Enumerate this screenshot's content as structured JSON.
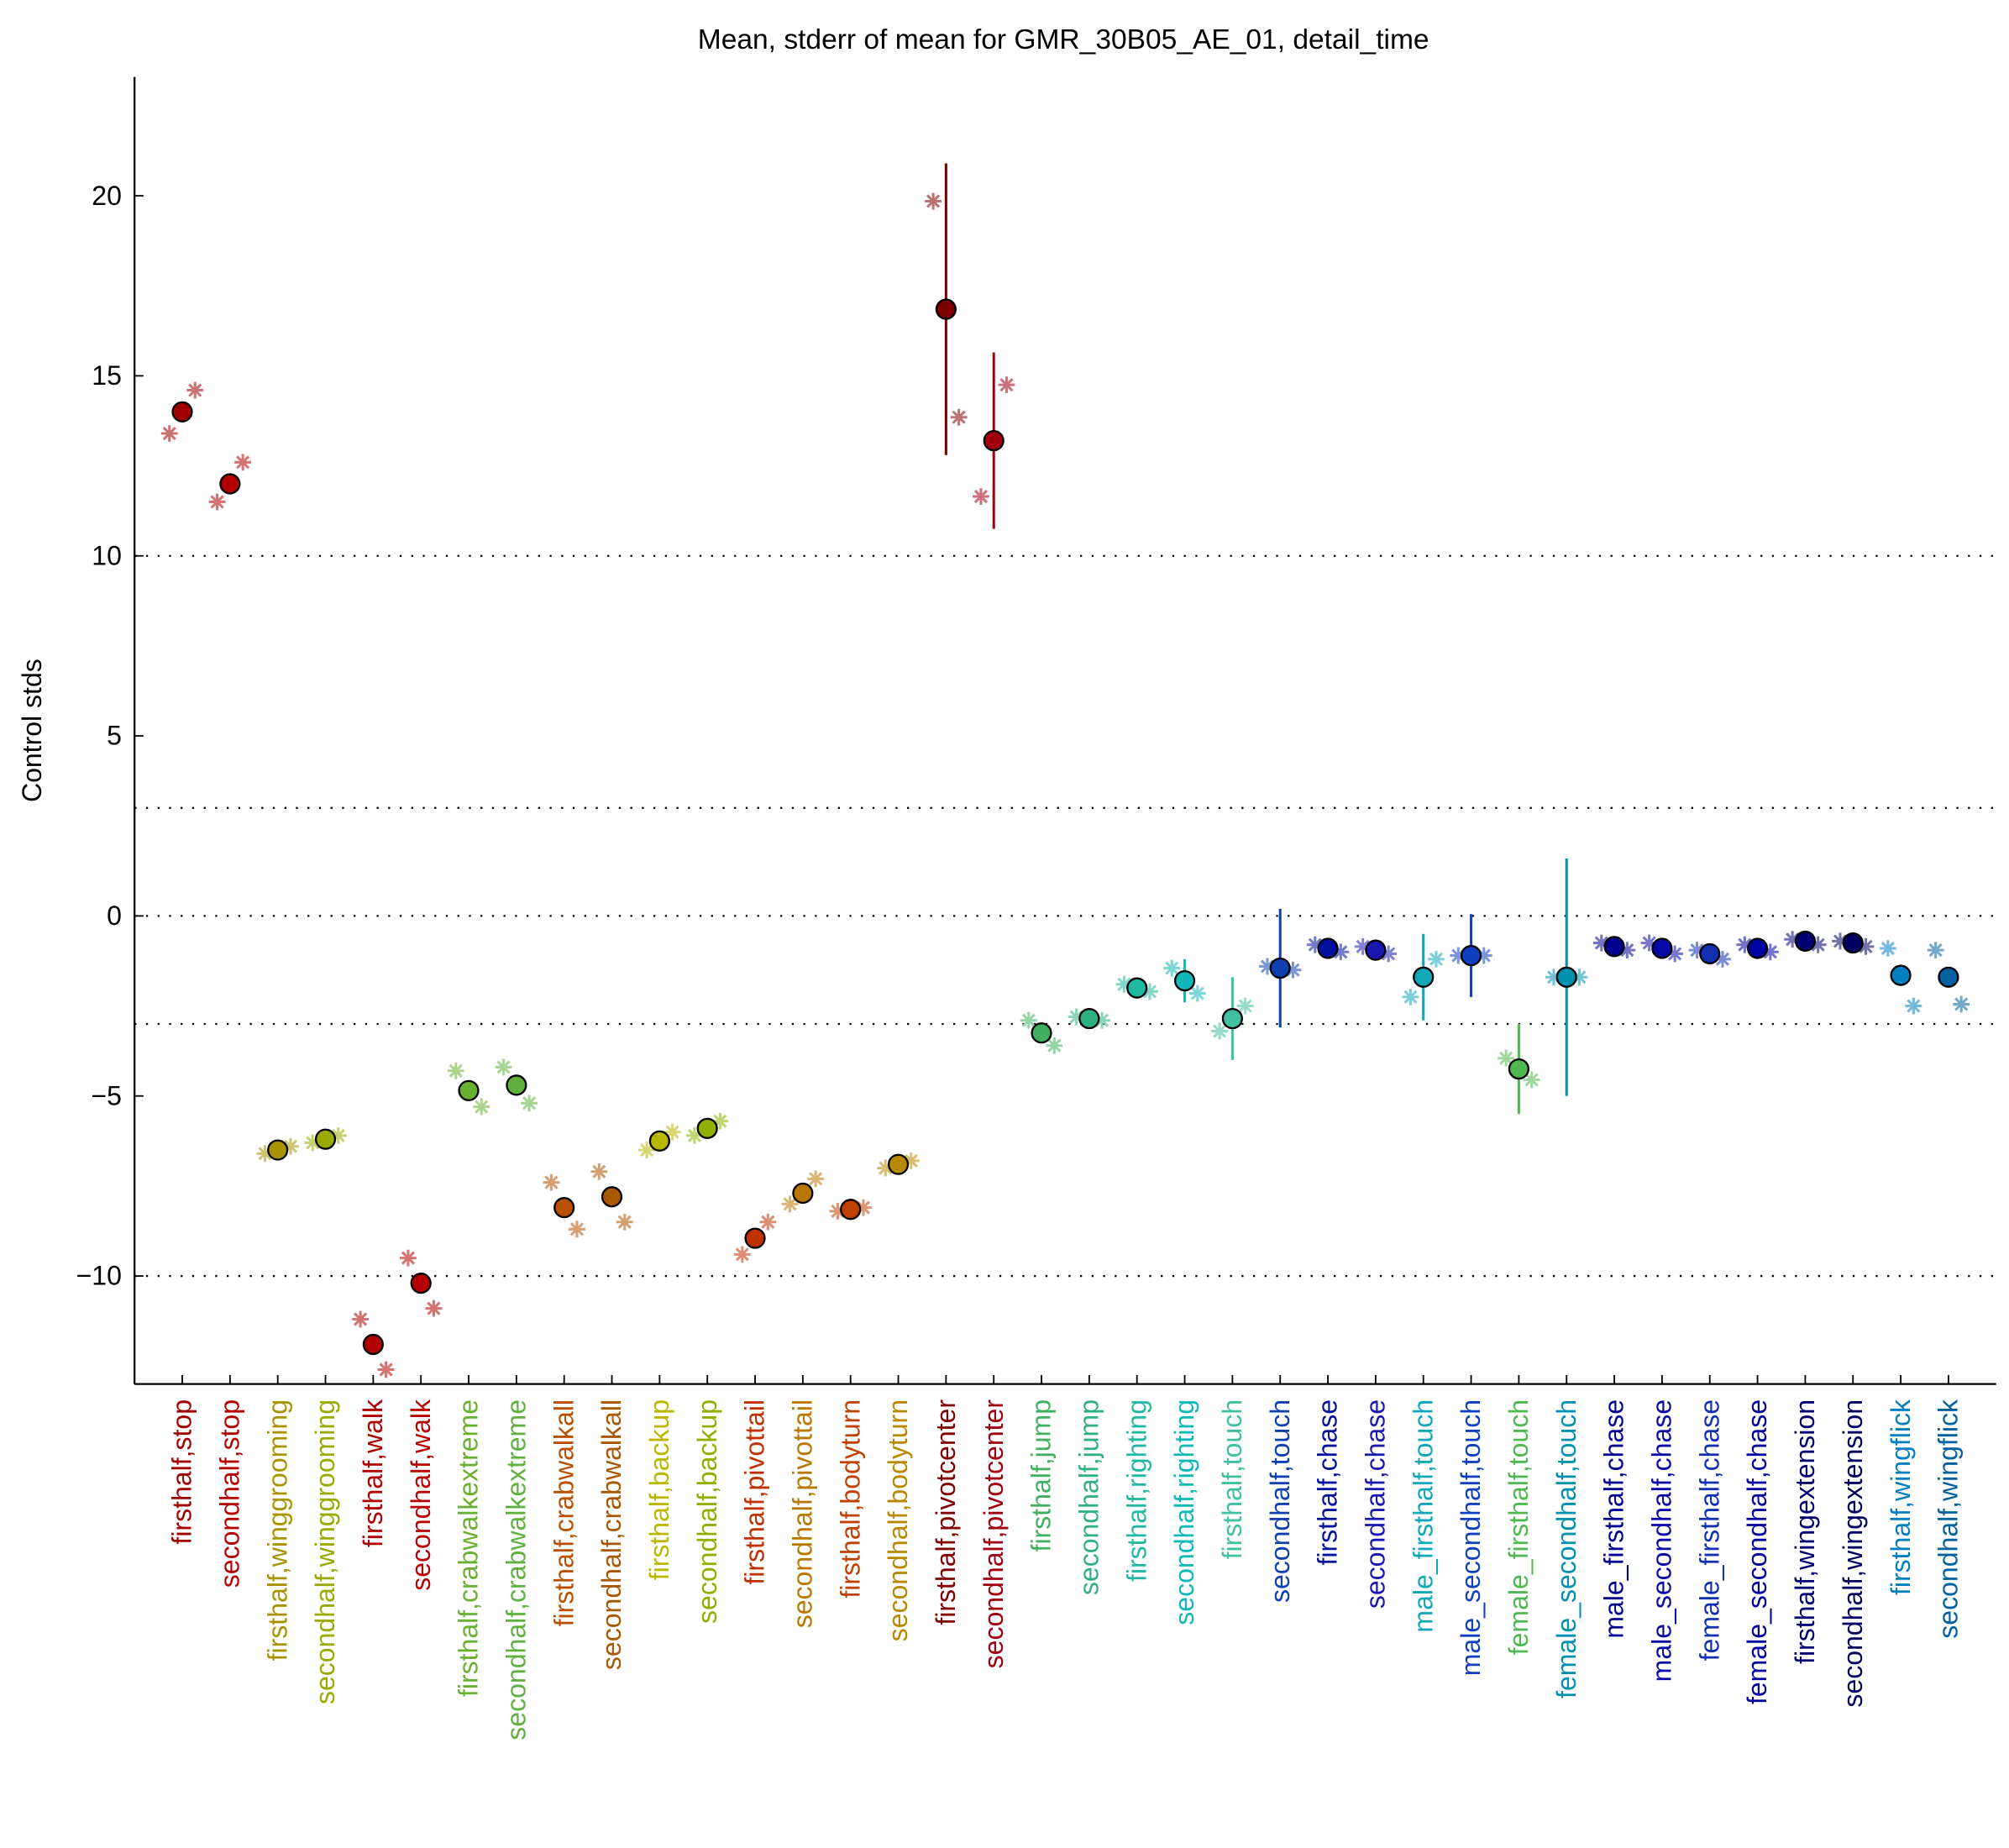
{
  "chart_data": {
    "type": "errorbar",
    "title": "Mean, stderr of mean for GMR_30B05_AE_01, detail_time",
    "y_label": "Control stds",
    "categories": [
      "firsthalf,stop",
      "secondhalf,stop",
      "firsthalf,winggrooming",
      "secondhalf,winggrooming",
      "firsthalf,walk",
      "secondhalf,walk",
      "firsthalf,crabwalkextreme",
      "secondhalf,crabwalkextreme",
      "firsthalf,crabwalkall",
      "secondhalf,crabwalkall",
      "firsthalf,backup",
      "secondhalf,backup",
      "firsthalf,pivottail",
      "secondhalf,pivottail",
      "firsthalf,bodyturn",
      "secondhalf,bodyturn",
      "firsthalf,pivotcenter",
      "secondhalf,pivotcenter",
      "firsthalf,jump",
      "secondhalf,jump",
      "firsthalf,righting",
      "secondhalf,righting",
      "firsthalf,touch",
      "secondhalf,touch",
      "firsthalf,chase",
      "secondhalf,chase",
      "male_firsthalf,touch",
      "male_secondhalf,touch",
      "female_firsthalf,touch",
      "female_secondhalf,touch",
      "male_firsthalf,chase",
      "male_secondhalf,chase",
      "female_firsthalf,chase",
      "female_secondhalf,chase",
      "firsthalf,wingextension",
      "secondhalf,wingextension",
      "firsthalf,wingflick",
      "secondhalf,wingflick"
    ],
    "colors": [
      "#a00000",
      "#b40000",
      "#a89400",
      "#9aaa00",
      "#b00000",
      "#b80000",
      "#6ab030",
      "#60b040",
      "#b85000",
      "#a85800",
      "#b8b800",
      "#8fb000",
      "#c03000",
      "#b87800",
      "#c04000",
      "#b88800",
      "#800000",
      "#a00010",
      "#40b060",
      "#30b080",
      "#20b8a0",
      "#10b8b8",
      "#40c0a0",
      "#1040b0",
      "#0010a0",
      "#1818b0",
      "#10a8b8",
      "#1040c0",
      "#50b850",
      "#0090b0",
      "#000090",
      "#0808a8",
      "#1030b0",
      "#0000a0",
      "#000070",
      "#000060",
      "#0080c0",
      "#0060a0"
    ],
    "values": [
      14.0,
      12.0,
      -6.5,
      -6.2,
      -11.9,
      -10.2,
      -4.85,
      -4.7,
      -8.1,
      -7.8,
      -6.25,
      -5.9,
      -8.95,
      -7.7,
      -8.15,
      -6.9,
      16.85,
      13.2,
      -3.25,
      -2.85,
      -2.0,
      -1.8,
      -2.85,
      -1.45,
      -0.9,
      -0.95,
      -1.7,
      -1.1,
      -4.25,
      -1.7,
      -0.85,
      -0.9,
      -1.05,
      -0.9,
      -0.7,
      -0.75,
      -1.65,
      -1.7
    ],
    "errors": [
      0,
      0,
      0,
      0,
      0,
      0,
      0,
      0,
      0,
      0,
      0,
      0,
      0,
      0,
      0,
      0,
      4.05,
      2.45,
      0,
      0,
      0,
      0.6,
      1.15,
      1.65,
      0,
      0,
      1.2,
      1.15,
      1.25,
      3.3,
      0,
      0,
      0,
      0,
      0,
      0,
      0,
      0
    ],
    "replicates": [
      [
        13.4,
        11.5,
        -6.6,
        -6.3,
        -11.2,
        -9.5,
        -4.3,
        -4.2,
        -7.4,
        -7.1,
        -6.5,
        -6.1,
        -9.4,
        -8.0,
        -8.2,
        -7.0,
        19.85,
        11.65,
        -2.9,
        -2.8,
        -1.9,
        -1.45,
        -3.2,
        -1.4,
        -0.8,
        -0.85,
        -2.25,
        -1.1,
        -3.95,
        -1.7,
        -0.75,
        -0.75,
        -0.95,
        -0.8,
        -0.65,
        -0.7,
        -0.9,
        -0.95
      ],
      [
        14.6,
        12.6,
        -6.4,
        -6.1,
        -12.6,
        -10.9,
        -5.3,
        -5.2,
        -8.7,
        -8.5,
        -6.0,
        -5.7,
        -8.5,
        -7.3,
        -8.1,
        -6.8,
        13.85,
        14.75,
        -3.6,
        -2.9,
        -2.1,
        -2.15,
        -2.5,
        -1.5,
        -1.0,
        -1.05,
        -1.2,
        -1.1,
        -4.55,
        -1.7,
        -0.95,
        -1.05,
        -1.2,
        -1.0,
        -0.8,
        -0.85,
        -2.5,
        -2.45
      ]
    ],
    "reference_lines": [
      10,
      3,
      0,
      -3,
      -10
    ],
    "ylim": [
      -13,
      23.3
    ],
    "yticks": [
      {
        "value": -10,
        "label": "−10"
      },
      {
        "value": -5,
        "label": "−5"
      },
      0,
      5,
      10,
      15,
      20
    ]
  }
}
